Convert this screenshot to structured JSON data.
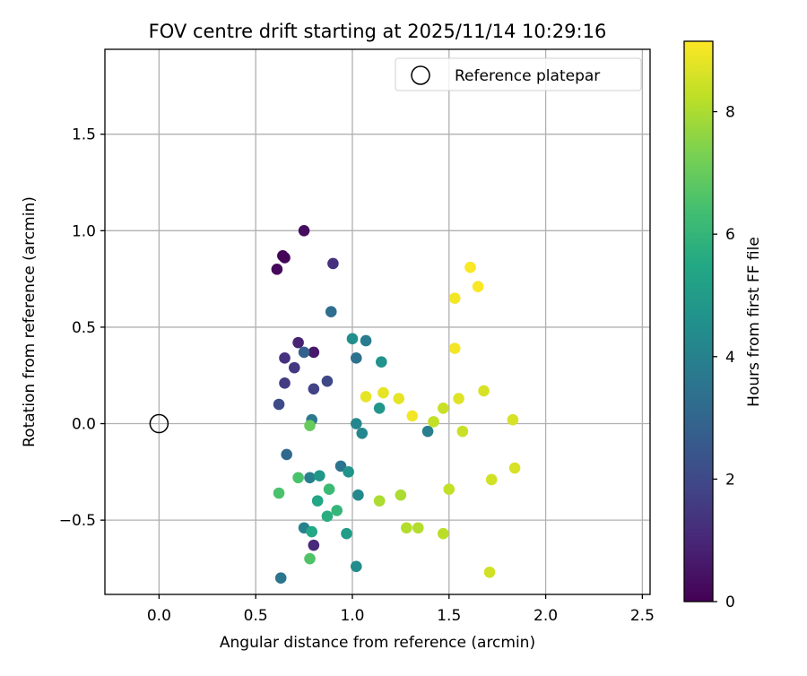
{
  "chart_data": {
    "type": "scatter",
    "title": "FOV centre drift starting at 2025/11/14 10:29:16",
    "xlabel": "Angular distance from reference (arcmin)",
    "ylabel": "Rotation from reference (arcmin)",
    "xlim": [
      -0.28,
      2.54
    ],
    "ylim": [
      -0.885,
      1.94
    ],
    "xticks": [
      0.0,
      0.5,
      1.0,
      1.5,
      2.0,
      2.5
    ],
    "xtick_labels": [
      "0.0",
      "0.5",
      "1.0",
      "1.5",
      "2.0",
      "2.5"
    ],
    "yticks": [
      -0.5,
      0.0,
      0.5,
      1.0,
      1.5
    ],
    "ytick_labels": [
      "−0.5",
      "0.0",
      "0.5",
      "1.0",
      "1.5"
    ],
    "grid": true,
    "legend": {
      "position": "top-right",
      "entries": [
        {
          "label": "Reference platepar",
          "marker": "open-circle"
        }
      ]
    },
    "reference_point": {
      "x": 0.0,
      "y": 0.0
    },
    "colorbar": {
      "label": "Hours from first FF file",
      "range": [
        0,
        9.15
      ],
      "ticks": [
        0,
        2,
        4,
        6,
        8
      ],
      "tick_labels": [
        "0",
        "2",
        "4",
        "6",
        "8"
      ],
      "colormap": "viridis"
    },
    "points": [
      {
        "x": 0.64,
        "y": 0.87,
        "c": 0.05
      },
      {
        "x": 0.65,
        "y": 0.86,
        "c": 0.1
      },
      {
        "x": 0.61,
        "y": 0.8,
        "c": 0.2
      },
      {
        "x": 0.75,
        "y": 1.0,
        "c": 0.3
      },
      {
        "x": 0.8,
        "y": 0.37,
        "c": 0.6
      },
      {
        "x": 0.72,
        "y": 0.42,
        "c": 0.9
      },
      {
        "x": 0.8,
        "y": -0.63,
        "c": 1.1
      },
      {
        "x": 0.9,
        "y": 0.83,
        "c": 1.3
      },
      {
        "x": 0.65,
        "y": 0.34,
        "c": 1.3
      },
      {
        "x": 0.7,
        "y": 0.29,
        "c": 1.5
      },
      {
        "x": 0.65,
        "y": 0.21,
        "c": 1.6
      },
      {
        "x": 0.8,
        "y": 0.18,
        "c": 1.8
      },
      {
        "x": 0.87,
        "y": 0.22,
        "c": 2.0
      },
      {
        "x": 0.62,
        "y": 0.1,
        "c": 2.1
      },
      {
        "x": 0.75,
        "y": 0.37,
        "c": 2.8
      },
      {
        "x": 0.66,
        "y": -0.16,
        "c": 3.1
      },
      {
        "x": 0.89,
        "y": 0.58,
        "c": 3.3
      },
      {
        "x": 1.02,
        "y": 0.34,
        "c": 3.4
      },
      {
        "x": 0.94,
        "y": -0.22,
        "c": 3.5
      },
      {
        "x": 0.63,
        "y": -0.8,
        "c": 3.6
      },
      {
        "x": 0.79,
        "y": 0.02,
        "c": 3.7
      },
      {
        "x": 1.07,
        "y": 0.43,
        "c": 3.8
      },
      {
        "x": 1.39,
        "y": -0.04,
        "c": 3.9
      },
      {
        "x": 0.75,
        "y": -0.54,
        "c": 4.0
      },
      {
        "x": 0.78,
        "y": -0.28,
        "c": 4.0
      },
      {
        "x": 1.02,
        "y": 0.0,
        "c": 4.2
      },
      {
        "x": 1.05,
        "y": -0.05,
        "c": 4.2
      },
      {
        "x": 1.03,
        "y": -0.37,
        "c": 4.3
      },
      {
        "x": 1.02,
        "y": -0.74,
        "c": 4.4
      },
      {
        "x": 1.0,
        "y": 0.44,
        "c": 4.5
      },
      {
        "x": 1.15,
        "y": 0.32,
        "c": 4.6
      },
      {
        "x": 0.98,
        "y": -0.25,
        "c": 4.7
      },
      {
        "x": 0.83,
        "y": -0.27,
        "c": 4.8
      },
      {
        "x": 1.14,
        "y": 0.08,
        "c": 4.8
      },
      {
        "x": 0.97,
        "y": -0.57,
        "c": 5.0
      },
      {
        "x": 0.82,
        "y": -0.4,
        "c": 5.4
      },
      {
        "x": 0.79,
        "y": -0.56,
        "c": 5.5
      },
      {
        "x": 0.87,
        "y": -0.48,
        "c": 5.7
      },
      {
        "x": 0.92,
        "y": -0.45,
        "c": 6.0
      },
      {
        "x": 0.88,
        "y": -0.34,
        "c": 6.2
      },
      {
        "x": 0.72,
        "y": -0.28,
        "c": 6.5
      },
      {
        "x": 0.62,
        "y": -0.36,
        "c": 6.5
      },
      {
        "x": 0.78,
        "y": -0.7,
        "c": 6.6
      },
      {
        "x": 0.78,
        "y": -0.01,
        "c": 7.0
      },
      {
        "x": 1.14,
        "y": -0.4,
        "c": 8.0
      },
      {
        "x": 1.25,
        "y": -0.37,
        "c": 8.0
      },
      {
        "x": 1.28,
        "y": -0.54,
        "c": 8.1
      },
      {
        "x": 1.34,
        "y": -0.54,
        "c": 8.1
      },
      {
        "x": 1.47,
        "y": -0.57,
        "c": 8.2
      },
      {
        "x": 1.5,
        "y": -0.34,
        "c": 8.3
      },
      {
        "x": 1.42,
        "y": 0.01,
        "c": 8.3
      },
      {
        "x": 1.57,
        "y": -0.04,
        "c": 8.4
      },
      {
        "x": 1.47,
        "y": 0.08,
        "c": 8.4
      },
      {
        "x": 1.71,
        "y": -0.77,
        "c": 8.5
      },
      {
        "x": 1.72,
        "y": -0.29,
        "c": 8.5
      },
      {
        "x": 1.84,
        "y": -0.23,
        "c": 8.6
      },
      {
        "x": 1.83,
        "y": 0.02,
        "c": 8.6
      },
      {
        "x": 1.68,
        "y": 0.17,
        "c": 8.6
      },
      {
        "x": 1.55,
        "y": 0.13,
        "c": 8.7
      },
      {
        "x": 1.07,
        "y": 0.14,
        "c": 8.8
      },
      {
        "x": 1.16,
        "y": 0.16,
        "c": 8.8
      },
      {
        "x": 1.24,
        "y": 0.13,
        "c": 8.8
      },
      {
        "x": 1.31,
        "y": 0.04,
        "c": 9.0
      },
      {
        "x": 1.53,
        "y": 0.39,
        "c": 9.0
      },
      {
        "x": 1.53,
        "y": 0.65,
        "c": 9.0
      },
      {
        "x": 1.61,
        "y": 0.81,
        "c": 9.1
      },
      {
        "x": 1.65,
        "y": 0.71,
        "c": 9.1
      }
    ]
  }
}
